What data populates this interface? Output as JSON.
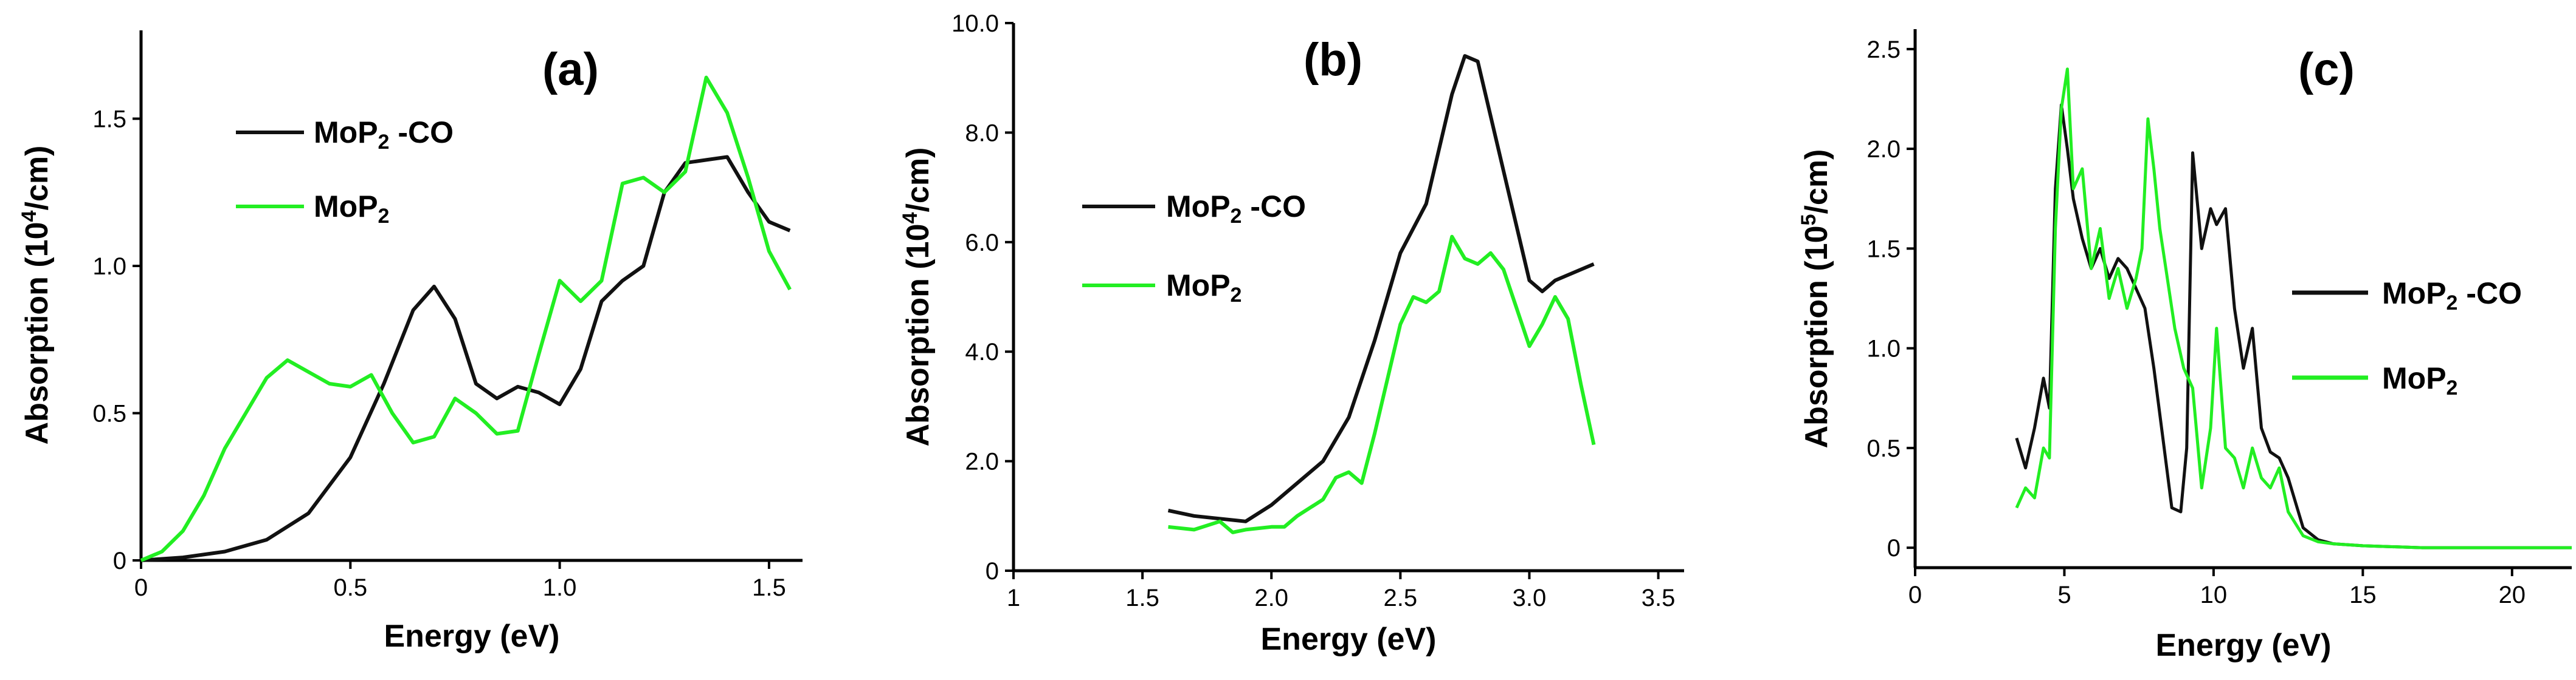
{
  "colors": {
    "series_a": "#111111",
    "series_b": "#22ee22",
    "axis": "#000000"
  },
  "chart_data": [
    {
      "type": "line",
      "panel_label": "(a)",
      "xlabel": "Energy (eV)",
      "ylabel_prefix": "Absorption (10",
      "ylabel_exp": "4",
      "ylabel_suffix": "/cm)",
      "xlim": [
        0,
        1.58
      ],
      "ylim": [
        0,
        1.8
      ],
      "xticks": [
        0,
        0.5,
        1.0,
        1.5
      ],
      "xtick_labels": [
        "0",
        "0.5",
        "1.0",
        "1.5"
      ],
      "yticks": [
        0,
        0.5,
        1.0,
        1.5
      ],
      "ytick_labels": [
        "0",
        "0.5",
        "1.0",
        "1.5"
      ],
      "grid": false,
      "legend_position": "upper-left",
      "series": [
        {
          "name": "MoP2 -CO",
          "legend": {
            "base": "MoP",
            "sub": "2",
            "suffix": " -CO"
          },
          "color": "#111111",
          "x": [
            0,
            0.1,
            0.2,
            0.3,
            0.4,
            0.5,
            0.58,
            0.65,
            0.7,
            0.75,
            0.8,
            0.85,
            0.9,
            0.95,
            1.0,
            1.05,
            1.1,
            1.15,
            1.2,
            1.25,
            1.3,
            1.35,
            1.4,
            1.45,
            1.5,
            1.55
          ],
          "y": [
            0,
            0.01,
            0.03,
            0.07,
            0.16,
            0.35,
            0.6,
            0.85,
            0.93,
            0.82,
            0.6,
            0.55,
            0.59,
            0.57,
            0.53,
            0.65,
            0.88,
            0.95,
            1.0,
            1.25,
            1.35,
            1.36,
            1.37,
            1.25,
            1.15,
            1.12
          ]
        },
        {
          "name": "MoP2",
          "legend": {
            "base": "MoP",
            "sub": "2",
            "suffix": ""
          },
          "color": "#22ee22",
          "x": [
            0,
            0.05,
            0.1,
            0.15,
            0.2,
            0.25,
            0.3,
            0.35,
            0.4,
            0.45,
            0.5,
            0.55,
            0.6,
            0.65,
            0.7,
            0.75,
            0.8,
            0.85,
            0.9,
            0.95,
            1.0,
            1.05,
            1.1,
            1.15,
            1.2,
            1.25,
            1.3,
            1.35,
            1.4,
            1.45,
            1.5,
            1.55
          ],
          "y": [
            0,
            0.03,
            0.1,
            0.22,
            0.38,
            0.5,
            0.62,
            0.68,
            0.64,
            0.6,
            0.59,
            0.63,
            0.5,
            0.4,
            0.42,
            0.55,
            0.5,
            0.43,
            0.44,
            0.7,
            0.95,
            0.88,
            0.95,
            1.28,
            1.3,
            1.25,
            1.32,
            1.64,
            1.52,
            1.3,
            1.05,
            0.92
          ]
        }
      ]
    },
    {
      "type": "line",
      "panel_label": "(b)",
      "xlabel": "Energy (eV)",
      "ylabel_prefix": "Absorption (10",
      "ylabel_exp": "4",
      "ylabel_suffix": "/cm)",
      "xlim": [
        1,
        3.6
      ],
      "ylim": [
        0,
        10
      ],
      "xticks": [
        1,
        1.5,
        2.0,
        2.5,
        3.0,
        3.5
      ],
      "xtick_labels": [
        "1",
        "1.5",
        "2.0",
        "2.5",
        "3.0",
        "3.5"
      ],
      "yticks": [
        0,
        2,
        4,
        6,
        8,
        10
      ],
      "ytick_labels": [
        "0",
        "2.0",
        "4.0",
        "6.0",
        "8.0",
        "10.0"
      ],
      "grid": false,
      "legend_position": "middle-left",
      "series": [
        {
          "name": "MoP2 -CO",
          "legend": {
            "base": "MoP",
            "sub": "2",
            "suffix": " -CO"
          },
          "color": "#111111",
          "x": [
            1.6,
            1.7,
            1.8,
            1.9,
            2.0,
            2.1,
            2.2,
            2.3,
            2.4,
            2.5,
            2.6,
            2.7,
            2.75,
            2.8,
            2.9,
            3.0,
            3.05,
            3.1,
            3.2,
            3.25
          ],
          "y": [
            1.1,
            1.0,
            0.95,
            0.9,
            1.2,
            1.6,
            2.0,
            2.8,
            4.2,
            5.8,
            6.7,
            8.7,
            9.4,
            9.3,
            7.3,
            5.3,
            5.1,
            5.3,
            5.5,
            5.6
          ]
        },
        {
          "name": "MoP2",
          "legend": {
            "base": "MoP",
            "sub": "2",
            "suffix": ""
          },
          "color": "#22ee22",
          "x": [
            1.6,
            1.7,
            1.8,
            1.85,
            1.9,
            2.0,
            2.05,
            2.1,
            2.2,
            2.25,
            2.3,
            2.35,
            2.4,
            2.5,
            2.55,
            2.6,
            2.65,
            2.7,
            2.75,
            2.8,
            2.85,
            2.9,
            2.95,
            3.0,
            3.05,
            3.1,
            3.15,
            3.2,
            3.25
          ],
          "y": [
            0.8,
            0.75,
            0.9,
            0.7,
            0.75,
            0.8,
            0.8,
            1.0,
            1.3,
            1.7,
            1.8,
            1.6,
            2.5,
            4.5,
            5.0,
            4.9,
            5.1,
            6.1,
            5.7,
            5.6,
            5.8,
            5.5,
            4.8,
            4.1,
            4.5,
            5.0,
            4.6,
            3.4,
            2.3
          ]
        }
      ]
    },
    {
      "type": "line",
      "panel_label": "(c)",
      "xlabel": "Energy (eV)",
      "ylabel_prefix": "Absorption (10",
      "ylabel_exp": "5",
      "ylabel_suffix": "/cm)",
      "xlim": [
        0,
        22
      ],
      "ylim": [
        -0.1,
        2.6
      ],
      "xticks": [
        0,
        5,
        10,
        15,
        20
      ],
      "xtick_labels": [
        "0",
        "5",
        "10",
        "15",
        "20"
      ],
      "yticks": [
        0,
        0.5,
        1.0,
        1.5,
        2.0,
        2.5
      ],
      "ytick_labels": [
        "0",
        "0.5",
        "1.0",
        "1.5",
        "2.0",
        "2.5"
      ],
      "grid": false,
      "legend_position": "middle-right",
      "series": [
        {
          "name": "MoP2 -CO",
          "legend": {
            "base": "MoP",
            "sub": "2",
            "suffix": " -CO"
          },
          "color": "#111111",
          "x": [
            3.4,
            3.7,
            4.0,
            4.3,
            4.5,
            4.7,
            4.9,
            5.1,
            5.3,
            5.6,
            5.9,
            6.2,
            6.5,
            6.8,
            7.1,
            7.4,
            7.7,
            8.0,
            8.3,
            8.6,
            8.9,
            9.1,
            9.3,
            9.6,
            9.9,
            10.1,
            10.4,
            10.7,
            11.0,
            11.3,
            11.6,
            11.9,
            12.2,
            12.5,
            13.0,
            13.5,
            14.0,
            15.0,
            17.0,
            22.0
          ],
          "y": [
            0.55,
            0.4,
            0.6,
            0.85,
            0.7,
            1.8,
            2.22,
            2.0,
            1.75,
            1.55,
            1.4,
            1.5,
            1.35,
            1.45,
            1.4,
            1.3,
            1.2,
            0.9,
            0.55,
            0.2,
            0.18,
            0.5,
            1.98,
            1.5,
            1.7,
            1.62,
            1.7,
            1.2,
            0.9,
            1.1,
            0.6,
            0.48,
            0.45,
            0.35,
            0.1,
            0.04,
            0.02,
            0.01,
            0.0,
            0.0
          ]
        },
        {
          "name": "MoP2",
          "legend": {
            "base": "MoP",
            "sub": "2",
            "suffix": ""
          },
          "color": "#22ee22",
          "x": [
            3.4,
            3.7,
            4.0,
            4.3,
            4.5,
            4.7,
            4.9,
            5.1,
            5.3,
            5.6,
            5.9,
            6.2,
            6.5,
            6.8,
            7.1,
            7.4,
            7.6,
            7.8,
            8.0,
            8.2,
            8.4,
            8.7,
            9.0,
            9.3,
            9.6,
            9.9,
            10.1,
            10.4,
            10.7,
            11.0,
            11.3,
            11.6,
            11.9,
            12.2,
            12.5,
            13.0,
            13.5,
            14.0,
            15.0,
            17.0,
            22.0
          ],
          "y": [
            0.2,
            0.3,
            0.25,
            0.5,
            0.45,
            1.6,
            2.2,
            2.4,
            1.8,
            1.9,
            1.4,
            1.6,
            1.25,
            1.4,
            1.2,
            1.35,
            1.5,
            2.15,
            1.9,
            1.6,
            1.4,
            1.1,
            0.9,
            0.8,
            0.3,
            0.6,
            1.1,
            0.5,
            0.45,
            0.3,
            0.5,
            0.35,
            0.3,
            0.4,
            0.18,
            0.06,
            0.03,
            0.02,
            0.01,
            0.0,
            0.0
          ]
        }
      ]
    }
  ]
}
